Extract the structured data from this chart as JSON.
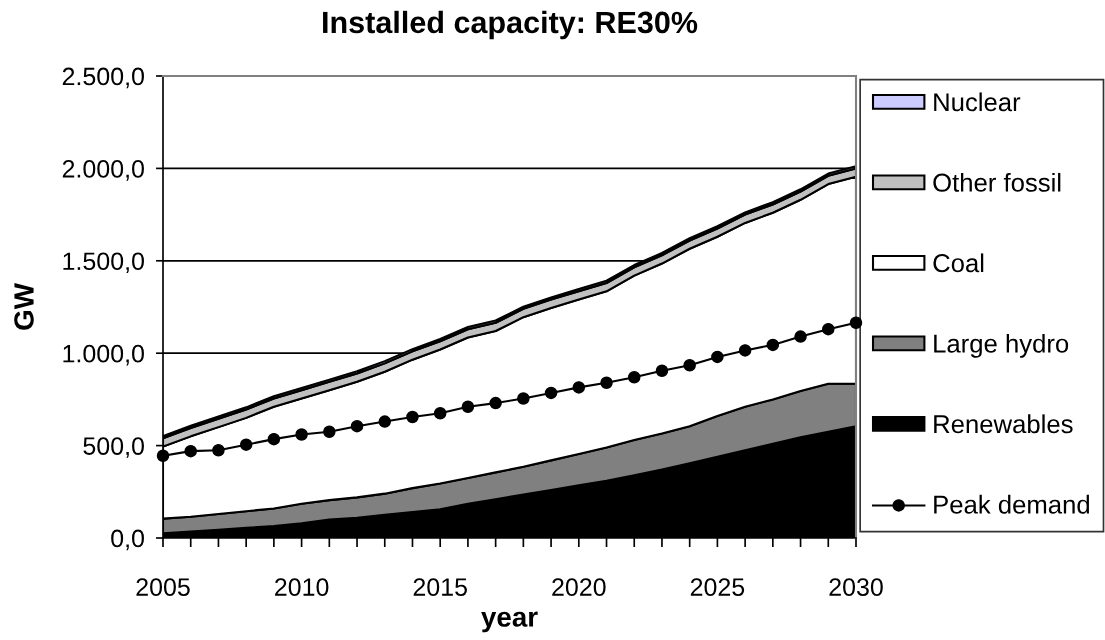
{
  "chart_data": {
    "type": "area",
    "stacked": true,
    "title": "Installed capacity: RE30%",
    "xlabel": "year",
    "ylabel": "GW",
    "x": [
      2005,
      2006,
      2007,
      2008,
      2009,
      2010,
      2011,
      2012,
      2013,
      2014,
      2015,
      2016,
      2017,
      2018,
      2019,
      2020,
      2021,
      2022,
      2023,
      2024,
      2025,
      2026,
      2027,
      2028,
      2029,
      2030
    ],
    "series": [
      {
        "name": "Renewables",
        "color": "#000000",
        "values": [
          25,
          35,
          45,
          55,
          65,
          80,
          100,
          110,
          125,
          140,
          155,
          185,
          210,
          235,
          260,
          285,
          310,
          340,
          370,
          405,
          440,
          475,
          510,
          545,
          575,
          605
        ]
      },
      {
        "name": "Large hydro",
        "color": "#808080",
        "values": [
          80,
          80,
          85,
          90,
          95,
          105,
          105,
          110,
          115,
          130,
          140,
          140,
          145,
          150,
          160,
          170,
          180,
          190,
          195,
          200,
          220,
          235,
          240,
          250,
          260,
          230
        ]
      },
      {
        "name": "Coal",
        "color": "#ffffff",
        "values": [
          390,
          435,
          470,
          505,
          550,
          570,
          595,
          625,
          660,
          695,
          725,
          760,
          765,
          810,
          825,
          835,
          845,
          890,
          920,
          960,
          970,
          995,
          1010,
          1035,
          1080,
          1120
        ]
      },
      {
        "name": "Other fossil",
        "color": "#c0c0c0",
        "values": [
          45,
          45,
          45,
          45,
          45,
          45,
          45,
          45,
          45,
          45,
          45,
          45,
          45,
          45,
          45,
          45,
          45,
          45,
          45,
          45,
          45,
          45,
          45,
          45,
          45,
          45
        ]
      },
      {
        "name": "Nuclear",
        "color": "#ccccff",
        "values": [
          12,
          12,
          12,
          12,
          12,
          12,
          12,
          12,
          12,
          12,
          12,
          12,
          12,
          12,
          12,
          12,
          12,
          12,
          12,
          12,
          12,
          12,
          12,
          12,
          12,
          12
        ]
      },
      {
        "name": "Peak demand",
        "type": "line",
        "color": "#000000",
        "marker": "circle",
        "line_style": "solid",
        "values": [
          445,
          470,
          475,
          505,
          535,
          560,
          575,
          605,
          630,
          655,
          675,
          710,
          730,
          755,
          785,
          815,
          840,
          870,
          905,
          935,
          980,
          1015,
          1045,
          1090,
          1130,
          1165
        ]
      }
    ],
    "xlim": [
      2005,
      2030
    ],
    "xticks": [
      2005,
      {
        "value": 2006,
        "label": null
      },
      {
        "value": 2007,
        "label": null
      },
      {
        "value": 2008,
        "label": null
      },
      {
        "value": 2009,
        "label": null
      },
      2010,
      {
        "value": 2011,
        "label": null
      },
      {
        "value": 2012,
        "label": null
      },
      {
        "value": 2013,
        "label": null
      },
      {
        "value": 2014,
        "label": null
      },
      2015,
      {
        "value": 2016,
        "label": null
      },
      {
        "value": 2017,
        "label": null
      },
      {
        "value": 2018,
        "label": null
      },
      {
        "value": 2019,
        "label": null
      },
      2020,
      {
        "value": 2021,
        "label": null
      },
      {
        "value": 2022,
        "label": null
      },
      {
        "value": 2023,
        "label": null
      },
      {
        "value": 2024,
        "label": null
      },
      2025,
      {
        "value": 2026,
        "label": null
      },
      {
        "value": 2027,
        "label": null
      },
      {
        "value": 2028,
        "label": null
      },
      {
        "value": 2029,
        "label": null
      },
      2030
    ],
    "ylim": [
      0,
      2500
    ],
    "yticks": [
      {
        "value": 0,
        "label": "0,0"
      },
      {
        "value": 500,
        "label": "500,0"
      },
      {
        "value": 1000,
        "label": "1.000,0"
      },
      {
        "value": 1500,
        "label": "1.500,0"
      },
      {
        "value": 2000,
        "label": "2.000,0"
      },
      {
        "value": 2500,
        "label": "2.500,0"
      }
    ],
    "grid": "y",
    "legend": "right"
  }
}
